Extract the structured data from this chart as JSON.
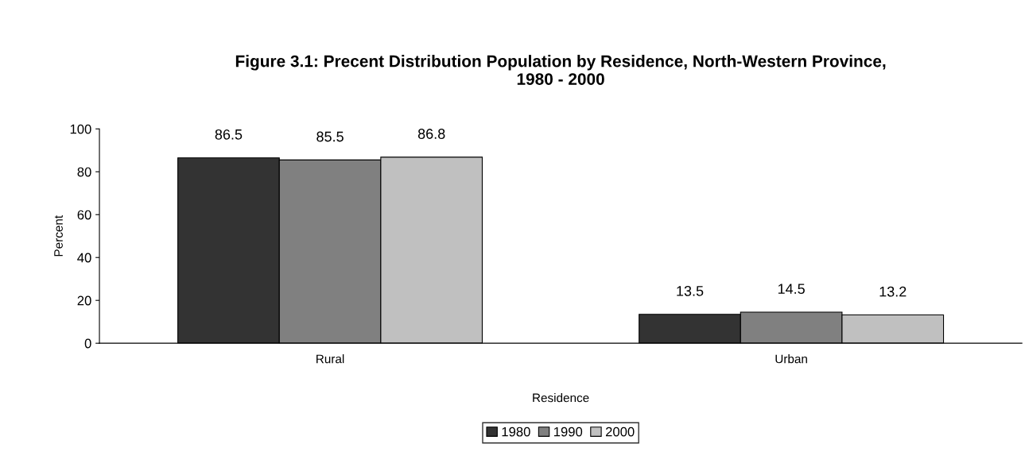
{
  "chart_data": {
    "type": "bar",
    "title": "Figure 3.1: Precent Distribution Population by Residence, North-Western Province,\n1980 - 2000",
    "xlabel": "Residence",
    "ylabel": "Percent",
    "categories": [
      "Rural",
      "Urban"
    ],
    "series": [
      {
        "name": "1980",
        "color": "#333333",
        "values": [
          86.5,
          13.5
        ]
      },
      {
        "name": "1990",
        "color": "#808080",
        "values": [
          85.5,
          14.5
        ]
      },
      {
        "name": "2000",
        "color": "#c0c0c0",
        "values": [
          86.8,
          13.2
        ]
      }
    ],
    "ylim": [
      0,
      100
    ],
    "yticks": [
      0,
      20,
      40,
      60,
      80,
      100
    ],
    "grid": false,
    "legend": "bottom",
    "data_labels": true
  }
}
